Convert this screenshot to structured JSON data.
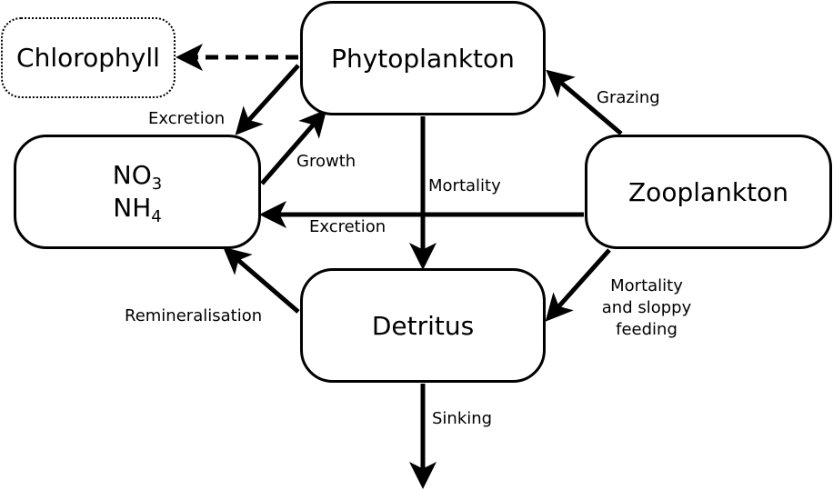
{
  "nodes": {
    "chlorophyll": "Chlorophyll",
    "phytoplankton": "Phytoplankton",
    "zooplankton": "Zooplankton",
    "detritus": "Detritus",
    "nutrients": {
      "line1_base": "NO",
      "line1_sub": "3",
      "line2_base": "NH",
      "line2_sub": "4"
    }
  },
  "edges": {
    "grazing": "Grazing",
    "excretion_phyto": "Excretion",
    "growth": "Growth",
    "mortality_phyto": "Mortality",
    "excretion_zoo": "Excretion",
    "remineralisation": "Remineralisation",
    "mortality_zoo_line1": "Mortality",
    "mortality_zoo_line2": "and sloppy",
    "mortality_zoo_line3": "feeding",
    "sinking": "Sinking"
  }
}
